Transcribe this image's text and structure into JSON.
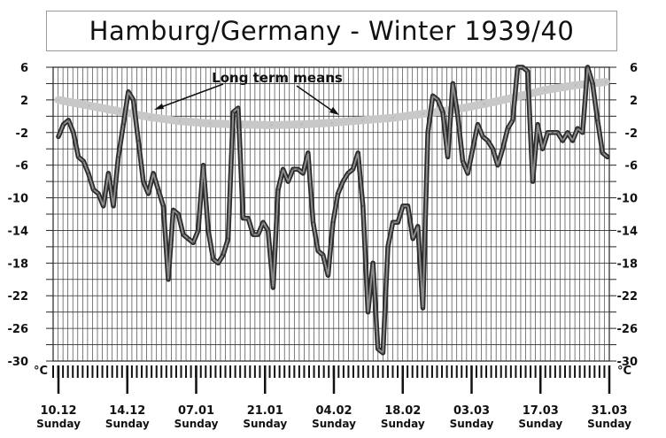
{
  "chart_data": {
    "type": "line",
    "title": "Hamburg/Germany - Winter 1939/40",
    "ylabel": "°C",
    "ylim": [
      -30,
      6
    ],
    "yticks": [
      6,
      2,
      -2,
      -6,
      -10,
      -14,
      -18,
      -22,
      -26,
      -30
    ],
    "grid": true,
    "x_labels": [
      {
        "date": "10.12",
        "day": "Sunday"
      },
      {
        "date": "14.12",
        "day": "Sunday"
      },
      {
        "date": "07.01",
        "day": "Sunday"
      },
      {
        "date": "21.01",
        "day": "Sunday"
      },
      {
        "date": "04.02",
        "day": "Sunday"
      },
      {
        "date": "18.02",
        "day": "Sunday"
      },
      {
        "date": "03.03",
        "day": "Sunday"
      },
      {
        "date": "17.03",
        "day": "Sunday"
      },
      {
        "date": "31.03",
        "day": "Sunday"
      }
    ],
    "annotation": "Long term means",
    "series": [
      {
        "values": [
          -2.5,
          -1,
          -0.5,
          -2,
          -5,
          -5.5,
          -7,
          -9,
          -9.5,
          -11,
          -7,
          -11,
          -5,
          -1,
          3,
          2,
          -3,
          -8,
          -9.5,
          -7,
          -9,
          -11,
          -20,
          -11.5,
          -12,
          -14.5,
          -15,
          -15.5,
          -14,
          -6,
          -14,
          -17.5,
          -18,
          -17,
          -15,
          0.5,
          1,
          -12.5,
          -12.5,
          -14.5,
          -14.5,
          -13,
          -14,
          -21,
          -9,
          -6.5,
          -8,
          -6.5,
          -6.5,
          -7,
          -4.5,
          -13,
          -16.5,
          -17,
          -19.5,
          -13,
          -9.5,
          -8,
          -7,
          -6.5,
          -4.5,
          -11,
          -24,
          -18,
          -28.5,
          -29,
          -16,
          -13,
          -13,
          -11,
          -11,
          -15,
          -13.5,
          -23.5,
          -2,
          2.5,
          2,
          0.5,
          -5,
          4,
          0,
          -5.5,
          -7,
          -4,
          -1,
          -2.5,
          -3,
          -4,
          -6,
          -4,
          -1.5,
          -0.5,
          6,
          6,
          5.5,
          -8,
          -1,
          -4,
          -2,
          -2,
          -2,
          -3,
          -2,
          -3,
          -1.5,
          -2,
          6,
          4,
          -0.5,
          -4.5,
          -5
        ]
      },
      {
        "name": "Long term means",
        "values": [
          2,
          1.3,
          0.6,
          -0.1,
          -0.6,
          -0.9,
          -1.0,
          -1.1,
          -1.0,
          -0.8,
          -0.5,
          -0.2,
          0.3,
          0.8,
          1.5,
          2.3,
          3.2,
          3.8,
          4.2
        ]
      }
    ]
  }
}
